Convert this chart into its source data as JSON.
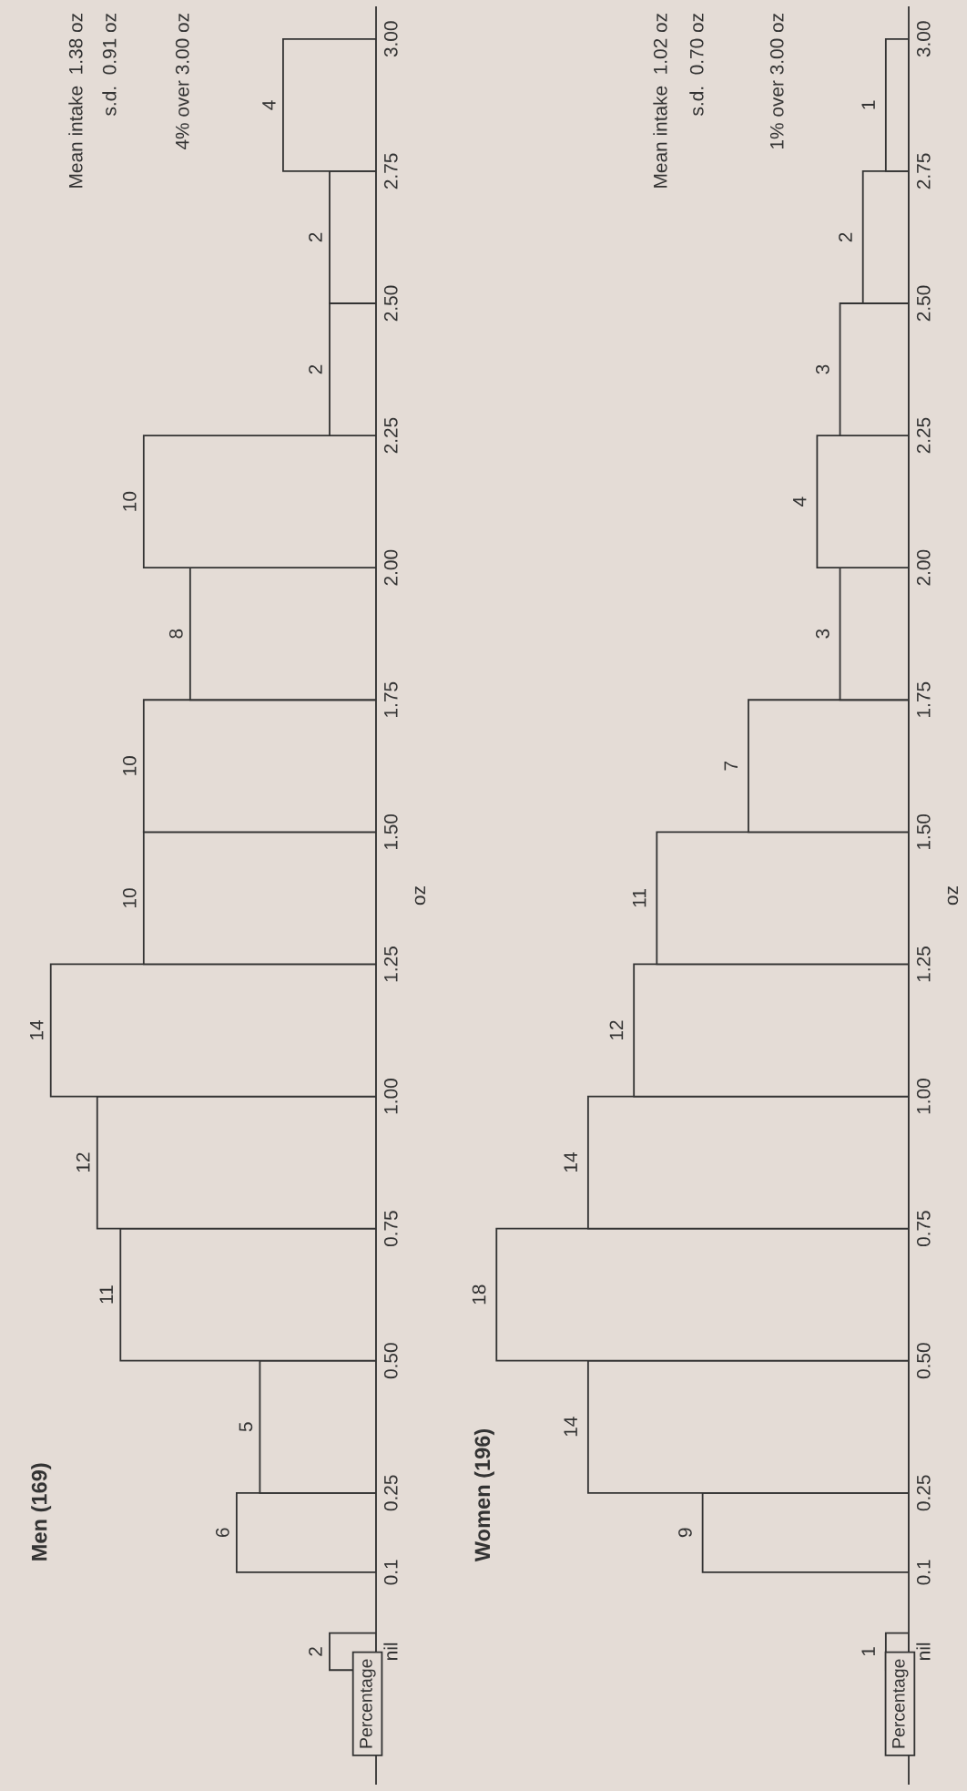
{
  "chart_data": [
    {
      "type": "histogram",
      "orientation": "horizontal",
      "title": "Men (169)",
      "ylabel": "oz",
      "color": "#333333",
      "bins": [
        0.1,
        0.25,
        0.5,
        0.75,
        1.0,
        1.25,
        1.5,
        1.75,
        2.0,
        2.25,
        2.5,
        2.75,
        3.0
      ],
      "values": [
        6,
        5,
        11,
        12,
        14,
        10,
        10,
        8,
        10,
        2,
        2,
        4
      ],
      "series": [
        {
          "type": "bar",
          "x": [
            -0.05
          ],
          "values": [
            2
          ],
          "color": "#333333"
        }
      ],
      "ylim": [
        -0.3,
        3.06
      ],
      "yticks": [
        {
          "value": -0.05,
          "label": "nil"
        },
        {
          "value": 0.1,
          "label": "0.1"
        },
        {
          "value": 0.25,
          "label": "0.25"
        },
        {
          "value": 0.5,
          "label": "0.50"
        },
        {
          "value": 0.75,
          "label": "0.75"
        },
        {
          "value": 1.0,
          "label": "1.00"
        },
        {
          "value": 1.25,
          "label": "1.25"
        },
        {
          "value": 1.5,
          "label": "1.50"
        },
        {
          "value": 1.75,
          "label": "1.75"
        },
        {
          "value": 2.0,
          "label": "2.00"
        },
        {
          "value": 2.25,
          "label": "2.25"
        },
        {
          "value": 2.5,
          "label": "2.50"
        },
        {
          "value": 2.75,
          "label": "2.75"
        },
        {
          "value": 3.0,
          "label": "3.00"
        }
      ],
      "data_labels": true,
      "annotations": [
        "Mean intake  1.38 oz",
        "s.d.  0.91 oz",
        "4% over 3.00 oz",
        "Percentage"
      ]
    },
    {
      "type": "histogram",
      "orientation": "horizontal",
      "title": "Women (196)",
      "ylabel": "oz",
      "color": "#333333",
      "bins": [
        0.1,
        0.25,
        0.5,
        0.75,
        1.0,
        1.25,
        1.5,
        1.75,
        2.0,
        2.25,
        2.5,
        2.75,
        3.0
      ],
      "values": [
        9,
        14,
        18,
        14,
        12,
        11,
        7,
        3,
        4,
        3,
        2,
        1
      ],
      "series": [
        {
          "type": "bar",
          "x": [
            -0.05
          ],
          "values": [
            1
          ],
          "color": "#333333"
        }
      ],
      "ylim": [
        -0.3,
        3.06
      ],
      "yticks": [
        {
          "value": -0.05,
          "label": "nil"
        },
        {
          "value": 0.1,
          "label": "0.1"
        },
        {
          "value": 0.25,
          "label": "0.25"
        },
        {
          "value": 0.5,
          "label": "0.50"
        },
        {
          "value": 0.75,
          "label": "0.75"
        },
        {
          "value": 1.0,
          "label": "1.00"
        },
        {
          "value": 1.25,
          "label": "1.25"
        },
        {
          "value": 1.5,
          "label": "1.50"
        },
        {
          "value": 1.75,
          "label": "1.75"
        },
        {
          "value": 2.0,
          "label": "2.00"
        },
        {
          "value": 2.25,
          "label": "2.25"
        },
        {
          "value": 2.5,
          "label": "2.50"
        },
        {
          "value": 2.75,
          "label": "2.75"
        },
        {
          "value": 3.0,
          "label": "3.00"
        }
      ],
      "data_labels": true,
      "annotations": [
        "Mean intake  1.02 oz",
        "s.d.  0.70 oz",
        "1% over 3.00 oz",
        "Percentage"
      ]
    }
  ]
}
